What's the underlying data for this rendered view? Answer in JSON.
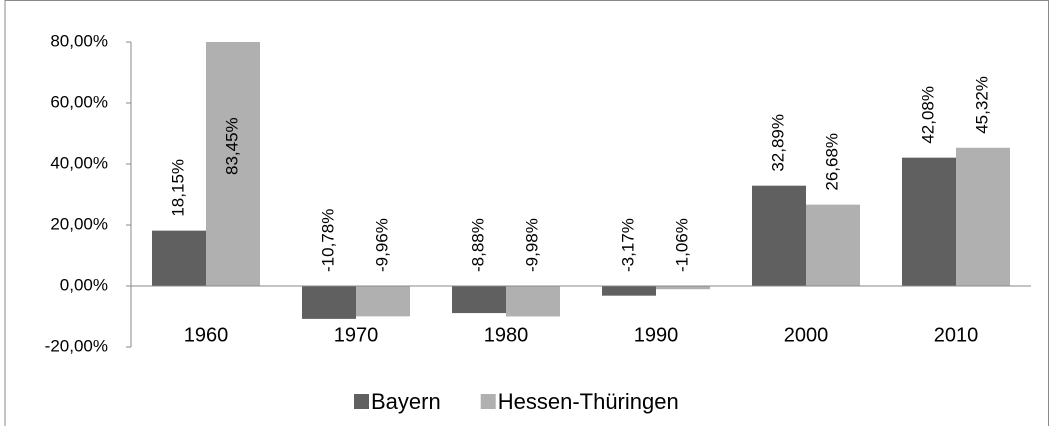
{
  "chart_data": {
    "type": "bar",
    "categories": [
      "1960",
      "1970",
      "1980",
      "1990",
      "2000",
      "2010"
    ],
    "series": [
      {
        "name": "Bayern",
        "color": "#606060",
        "values": [
          18.15,
          -10.78,
          -8.88,
          -3.17,
          32.89,
          42.08
        ],
        "value_labels": [
          "18,15%",
          "-10,78%",
          "-8,88%",
          "-3,17%",
          "32,89%",
          "42,08%"
        ]
      },
      {
        "name": "Hessen-Thüringen",
        "color": "#b0b0b0",
        "values": [
          83.45,
          -9.96,
          -9.98,
          -1.06,
          26.68,
          45.32
        ],
        "value_labels": [
          "83,45%",
          "-9,96%",
          "-9,98%",
          "-1,06%",
          "26,68%",
          "45,32%"
        ]
      }
    ],
    "ylim": [
      -20,
      80
    ],
    "yticks": [
      {
        "value": -20,
        "label": "-20,00%"
      },
      {
        "value": 0,
        "label": "0,00%"
      },
      {
        "value": 20,
        "label": "20,00%"
      },
      {
        "value": 40,
        "label": "40,00%"
      },
      {
        "value": 60,
        "label": "60,00%"
      },
      {
        "value": 80,
        "label": "80,00%"
      }
    ],
    "grid": false,
    "legend": "bottom"
  }
}
